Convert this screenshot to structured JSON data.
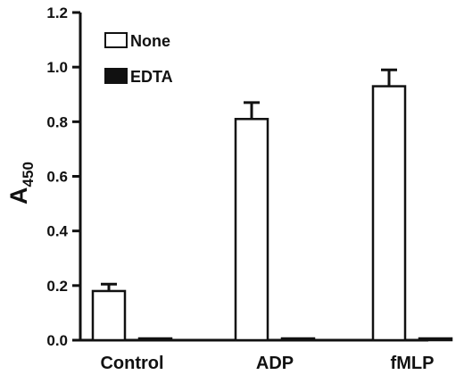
{
  "chart_data": {
    "type": "bar",
    "title": "",
    "xlabel": "",
    "ylabel": "A",
    "ylabel_subscript": "450",
    "ylim": [
      0,
      1.2
    ],
    "yticks": [
      "0.0",
      "0.2",
      "0.4",
      "0.6",
      "0.8",
      "1.0",
      "1.2"
    ],
    "categories": [
      "Control",
      "ADP",
      "fMLP"
    ],
    "series": [
      {
        "name": "None",
        "values": [
          0.18,
          0.81,
          0.93
        ],
        "errors": [
          0.025,
          0.06,
          0.06
        ],
        "fill": "#ffffff"
      },
      {
        "name": "EDTA",
        "values": [
          0.005,
          0.005,
          0.005
        ],
        "errors": [
          0.004,
          0.003,
          0.003
        ],
        "fill": "#111111"
      }
    ],
    "legend_position": "top-left",
    "grid": false
  }
}
